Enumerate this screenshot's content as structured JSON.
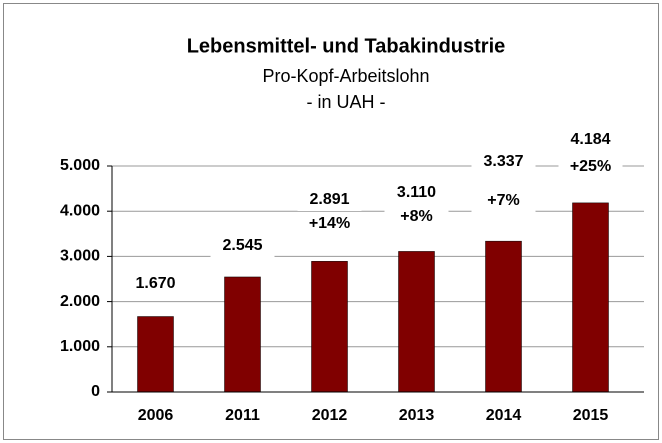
{
  "chart_data": {
    "type": "bar",
    "title": "Lebensmittel- und Tabakindustrie",
    "subtitle": [
      "Pro-Kopf-Arbeitslohn",
      "- in UAH -"
    ],
    "categories": [
      "2006",
      "2011",
      "2012",
      "2013",
      "2014",
      "2015"
    ],
    "values": [
      1670,
      2545,
      2891,
      3110,
      3337,
      4184
    ],
    "value_labels": [
      "1.670",
      "2.545",
      "2.891",
      "3.110",
      "3.337",
      "4.184"
    ],
    "change_labels": [
      null,
      null,
      "+14%",
      "+8%",
      "+7%",
      "+25%"
    ],
    "color": "#800000",
    "ylim": [
      0,
      5000
    ],
    "yticks": [
      {
        "value": 0,
        "label": "0"
      },
      {
        "value": 1000,
        "label": "1.000"
      },
      {
        "value": 2000,
        "label": "2.000"
      },
      {
        "value": 3000,
        "label": "3.000"
      },
      {
        "value": 4000,
        "label": "4.000"
      },
      {
        "value": 5000,
        "label": "5.000"
      }
    ],
    "grid": true
  }
}
